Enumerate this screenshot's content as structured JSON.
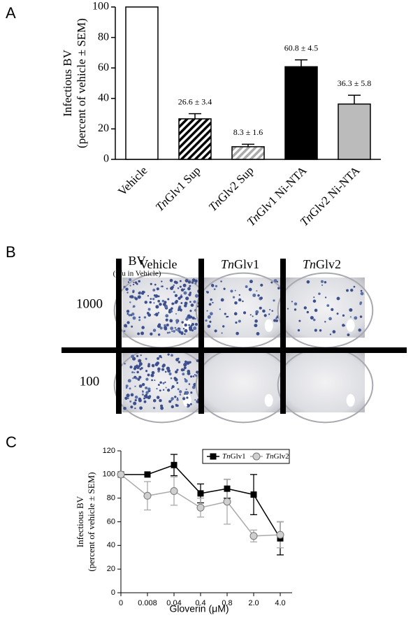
{
  "panel_labels": [
    "A",
    "B",
    "C"
  ],
  "chart_data": [
    {
      "type": "bar",
      "ylabel": [
        "Infectious BV",
        "(percent of vehicle ± SEM)"
      ],
      "categories": [
        "Vehicle",
        "TnGlv1 Sup",
        "TnGlv2 Sup",
        "TnGlv1 Ni-NTA",
        "TnGlv2 Ni-NTA"
      ],
      "values": [
        100,
        26.6,
        8.3,
        60.8,
        36.3
      ],
      "errors": [
        null,
        3.4,
        1.6,
        4.5,
        5.8
      ],
      "value_labels": [
        null,
        "26.6 ± 3.4",
        "8.3 ± 1.6",
        "60.8 ± 4.5",
        "36.3 ± 5.8"
      ],
      "colors": [
        "#ffffff",
        "#000000",
        "#aaaaaa",
        "#000000",
        "#bbbbbb"
      ],
      "hatched": [
        false,
        true,
        true,
        false,
        false
      ],
      "ylim": [
        0,
        100
      ],
      "yticks": [
        0,
        20,
        40,
        60,
        80,
        100
      ]
    },
    {
      "type": "line",
      "ylabel": [
        "Infectious BV",
        "(percent of vehicle ± SEM)"
      ],
      "xlabel": "Gloverin (μM)",
      "categories": [
        "0",
        "0.008",
        "0.04",
        "0.4",
        "0.8",
        "2.0",
        "4.0"
      ],
      "series": [
        {
          "name": "TnGlv1",
          "color": "#000000",
          "marker": "square",
          "values": [
            100,
            100,
            108,
            84,
            88,
            83,
            46
          ],
          "errors": [
            0,
            0,
            9,
            8,
            8,
            17,
            14
          ]
        },
        {
          "name": "TnGlv2",
          "color": "#aaaaaa",
          "marker": "circle",
          "values": [
            100,
            82,
            86,
            72,
            77,
            48,
            49
          ],
          "errors": [
            0,
            12,
            12,
            8,
            19,
            5,
            11
          ]
        }
      ],
      "ylim": [
        0,
        120
      ],
      "yticks": [
        0,
        20,
        40,
        60,
        80,
        100,
        120
      ],
      "legend": "top-right"
    }
  ],
  "plate": {
    "row_header": "BV",
    "row_subheader": "(pfu in Vehicle)",
    "columns": [
      "Vehicle",
      "TnGlv1",
      "TnGlv2"
    ],
    "rows": [
      "1000",
      "100"
    ]
  }
}
